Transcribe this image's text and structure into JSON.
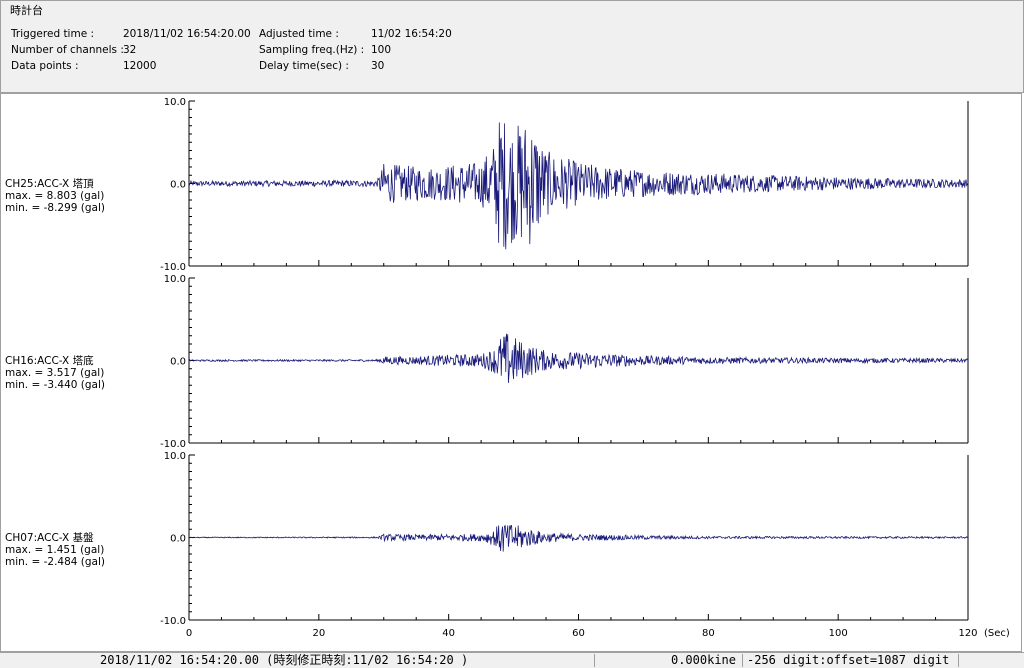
{
  "header": {
    "title": "時計台",
    "triggered_label": "Triggered time :",
    "triggered_value": "2018/11/02 16:54:20.00",
    "channels_label": "Number of channels :",
    "channels_value": "32",
    "points_label": "Data points :",
    "points_value": "12000",
    "adjusted_label": "Adjusted time :",
    "adjusted_value": "11/02 16:54:20",
    "sampling_label": "Sampling freq.(Hz) :",
    "sampling_value": "100",
    "delay_label": "Delay time(sec) :",
    "delay_value": "30"
  },
  "chart_data": {
    "type": "line",
    "x_unit_label": "(Sec)",
    "xlim": [
      0,
      120
    ],
    "x_ticks": [
      0,
      20,
      40,
      60,
      80,
      100,
      120
    ],
    "x_tick_labels": [
      "0",
      "20",
      "40",
      "60",
      "80",
      "100",
      "120"
    ],
    "grid": false,
    "line_color": "#1a1a7a",
    "channels": [
      {
        "name": "CH25:ACC-X 塔頂",
        "max_text": "max. = 8.803 (gal)",
        "min_text": "min. = -8.299 (gal)",
        "max": 8.803,
        "min": -8.299,
        "ylim": [
          -10,
          10
        ],
        "y_tick_labels": [
          "10.0",
          "0.0",
          "-10.0"
        ],
        "envelope": [
          [
            0,
            0.3
          ],
          [
            29,
            0.4
          ],
          [
            30,
            2.5
          ],
          [
            33,
            2.2
          ],
          [
            38,
            2.0
          ],
          [
            42,
            2.5
          ],
          [
            45,
            2.6
          ],
          [
            47,
            5.0
          ],
          [
            48,
            8.8
          ],
          [
            50,
            7.0
          ],
          [
            52,
            8.0
          ],
          [
            53,
            7.5
          ],
          [
            55,
            4.0
          ],
          [
            60,
            2.6
          ],
          [
            65,
            2.0
          ],
          [
            70,
            1.6
          ],
          [
            80,
            1.3
          ],
          [
            90,
            1.0
          ],
          [
            100,
            0.8
          ],
          [
            110,
            0.6
          ],
          [
            120,
            0.5
          ]
        ]
      },
      {
        "name": "CH16:ACC-X 塔底",
        "max_text": "max. = 3.517 (gal)",
        "min_text": "min. = -3.440 (gal)",
        "max": 3.517,
        "min": -3.44,
        "ylim": [
          -10,
          10
        ],
        "y_tick_labels": [
          "10.0",
          "0.0",
          "-10.0"
        ],
        "envelope": [
          [
            0,
            0.1
          ],
          [
            29,
            0.12
          ],
          [
            30,
            0.5
          ],
          [
            35,
            0.5
          ],
          [
            40,
            0.7
          ],
          [
            45,
            0.8
          ],
          [
            47,
            1.5
          ],
          [
            48,
            3.0
          ],
          [
            49,
            3.5
          ],
          [
            50,
            3.0
          ],
          [
            52,
            2.0
          ],
          [
            55,
            1.2
          ],
          [
            60,
            1.0
          ],
          [
            65,
            0.8
          ],
          [
            70,
            0.6
          ],
          [
            80,
            0.4
          ],
          [
            100,
            0.3
          ],
          [
            120,
            0.25
          ]
        ]
      },
      {
        "name": "CH07:ACC-X 基盤",
        "max_text": "max. = 1.451 (gal)",
        "min_text": "min. = -2.484 (gal)",
        "max": 1.451,
        "min": -2.484,
        "ylim": [
          -10,
          10
        ],
        "y_tick_labels": [
          "10.0",
          "0.0",
          "-10.0"
        ],
        "envelope": [
          [
            0,
            0.05
          ],
          [
            29,
            0.08
          ],
          [
            30,
            0.4
          ],
          [
            35,
            0.35
          ],
          [
            40,
            0.4
          ],
          [
            45,
            0.45
          ],
          [
            47,
            1.0
          ],
          [
            48,
            2.0
          ],
          [
            49,
            2.3
          ],
          [
            50,
            1.8
          ],
          [
            52,
            1.2
          ],
          [
            55,
            0.6
          ],
          [
            60,
            0.4
          ],
          [
            70,
            0.25
          ],
          [
            80,
            0.15
          ],
          [
            120,
            0.1
          ]
        ]
      }
    ]
  },
  "status": {
    "time": "2018/11/02 16:54:20.00  (時刻修正時刻:11/02 16:54:20  )",
    "kine": "0.000kine",
    "digit": "-256 digit:offset=1087 digit"
  }
}
